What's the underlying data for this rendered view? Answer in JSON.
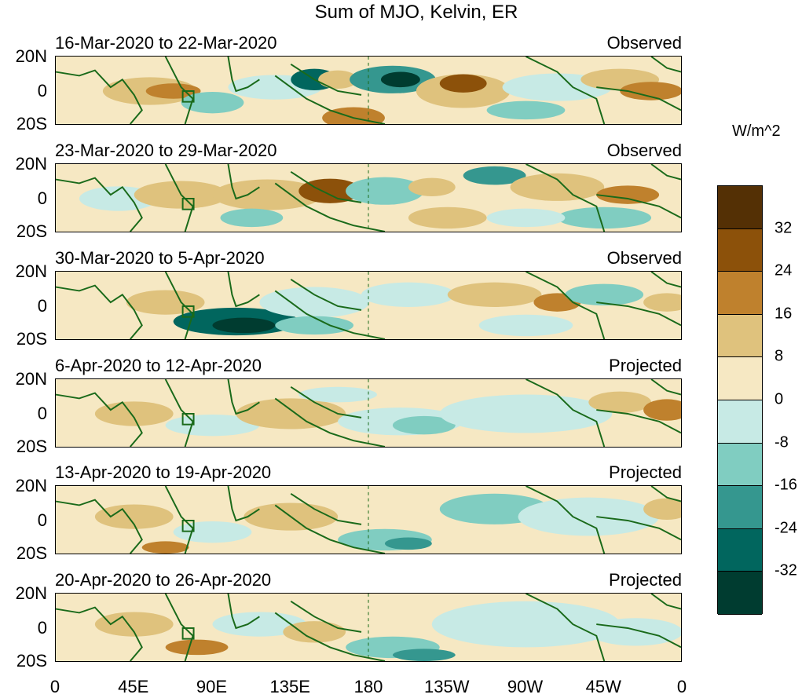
{
  "title": "Sum of MJO, Kelvin, ER",
  "panels": [
    {
      "label": "16-Mar-2020 to 22-Mar-2020",
      "status": "Observed"
    },
    {
      "label": "23-Mar-2020 to 29-Mar-2020",
      "status": "Observed"
    },
    {
      "label": "30-Mar-2020 to 5-Apr-2020",
      "status": "Observed"
    },
    {
      "label": "6-Apr-2020 to 12-Apr-2020",
      "status": "Projected"
    },
    {
      "label": "13-Apr-2020 to 19-Apr-2020",
      "status": "Projected"
    },
    {
      "label": "20-Apr-2020 to 26-Apr-2020",
      "status": "Projected"
    }
  ],
  "lat_labels": [
    "20N",
    "0",
    "20S"
  ],
  "lon_labels": [
    "0",
    "45E",
    "90E",
    "135E",
    "180",
    "135W",
    "90W",
    "45W",
    "0"
  ],
  "colorbar": {
    "title": "W/m^2",
    "ticks": [
      "32",
      "24",
      "16",
      "8",
      "0",
      "-8",
      "-16",
      "-24",
      "-32"
    ],
    "colors": [
      "#543005",
      "#8c510a",
      "#bf812d",
      "#dfc27d",
      "#f6e8c3",
      "#c7eae5",
      "#80cdc1",
      "#35978f",
      "#01665e",
      "#003c30"
    ]
  }
}
